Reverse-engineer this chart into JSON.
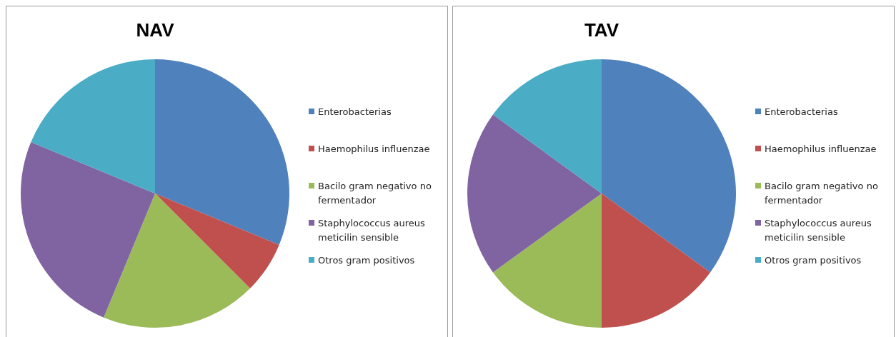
{
  "chart_data": [
    {
      "type": "pie",
      "title": "NAV",
      "categories": [
        "Enterobacterias",
        "Haemophilus influenzae",
        "Bacilo gram negativo no fermentador",
        "Staphylococcus aureus meticilin sensible",
        "Otros gram positivos"
      ],
      "values": [
        31.25,
        6.25,
        18.75,
        25,
        18.75
      ],
      "colors": [
        "#4f81bd",
        "#c0504d",
        "#9bbb59",
        "#8064a2",
        "#4bacc6"
      ],
      "legend": "right"
    },
    {
      "type": "pie",
      "title": "TAV",
      "categories": [
        "Enterobacterias",
        "Haemophilus influenzae",
        "Bacilo gram negativo no fermentador",
        "Staphylococcus aureus meticilin sensible",
        "Otros gram positivos"
      ],
      "values": [
        35,
        15,
        15,
        20,
        15
      ],
      "colors": [
        "#4f81bd",
        "#c0504d",
        "#9bbb59",
        "#8064a2",
        "#4bacc6"
      ],
      "legend": "right"
    }
  ]
}
